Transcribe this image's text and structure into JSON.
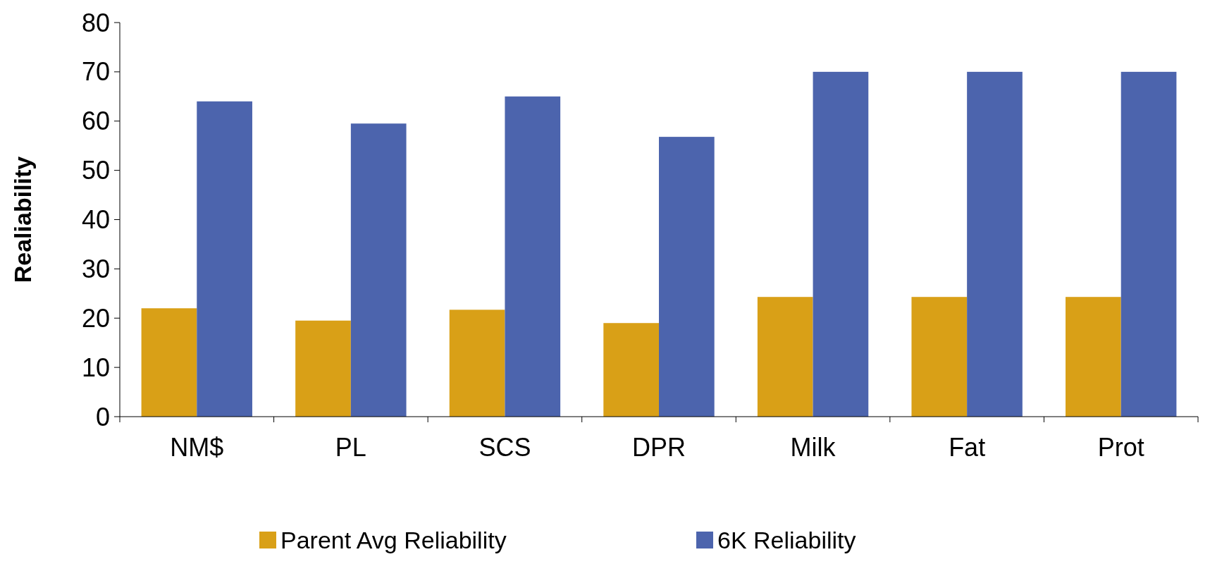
{
  "chart_data": {
    "type": "bar",
    "ylabel": "Realiability",
    "categories": [
      "NM$",
      "PL",
      "SCS",
      "DPR",
      "Milk",
      "Fat",
      "Prot"
    ],
    "series": [
      {
        "name": "Parent Avg Reliability",
        "color": "#d9a017",
        "values": [
          22,
          19.5,
          21.7,
          19,
          24.3,
          24.3,
          24.3
        ]
      },
      {
        "name": "6K Reliability",
        "color": "#4c64ad",
        "values": [
          64,
          59.5,
          65,
          56.8,
          70,
          70,
          70
        ]
      }
    ],
    "ylim": [
      0,
      80
    ],
    "yticks": [
      0,
      10,
      20,
      30,
      40,
      50,
      60,
      70,
      80
    ],
    "grid": false,
    "legend": "bottom"
  }
}
